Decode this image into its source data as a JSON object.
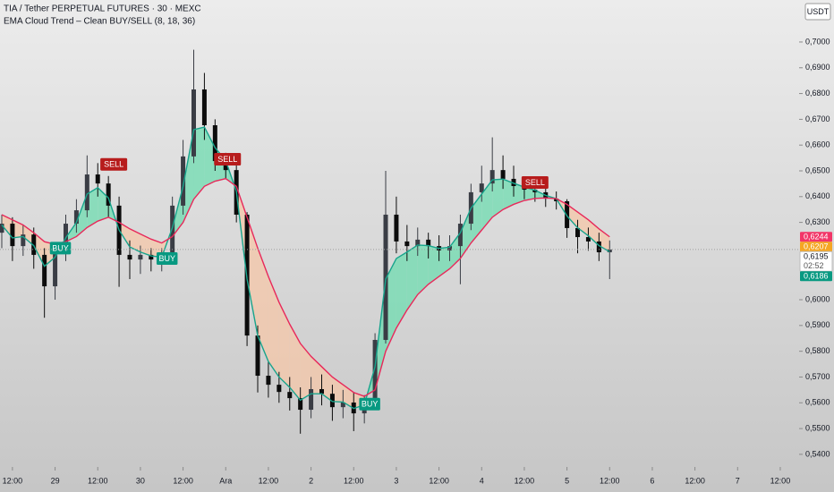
{
  "chart_data": {
    "type": "candlestick",
    "title": "TIA / Tether PERPETUAL FUTURES · 30 · MEXC",
    "subtitle": "EMA Cloud Trend – Clean BUY/SELL (8, 18, 36)",
    "currency": "USDT",
    "x": [
      -3,
      0,
      3,
      6,
      9,
      12,
      15,
      18,
      21,
      24,
      27,
      30,
      33,
      36,
      39,
      42,
      45,
      48,
      51,
      54,
      57,
      60,
      63,
      66,
      69,
      72,
      75,
      78,
      81,
      84,
      87,
      90,
      93,
      96,
      99,
      102,
      105,
      108,
      111,
      114,
      117,
      120,
      123,
      126,
      129,
      132,
      135,
      138,
      141,
      144,
      147,
      150,
      153,
      156,
      159,
      162,
      165,
      168
    ],
    "open": [
      0.626,
      0.6295,
      0.6208,
      0.6253,
      0.6174,
      0.6052,
      0.6191,
      0.6295,
      0.6347,
      0.6486,
      0.6451,
      0.6365,
      0.6174,
      0.6156,
      0.6174,
      0.6156,
      0.6163,
      0.6365,
      0.6556,
      0.6816,
      0.6677,
      0.6538,
      0.6503,
      0.633,
      0.5861,
      0.5705,
      0.567,
      0.5642,
      0.5618,
      0.5573,
      0.5653,
      0.5635,
      0.5583,
      0.5601,
      0.5559,
      0.5601,
      0.5844,
      0.633,
      0.6226,
      0.6208,
      0.6233,
      0.6208,
      0.6191,
      0.6208,
      0.6295,
      0.6417,
      0.6451,
      0.6503,
      0.6469,
      0.6441,
      0.6427,
      0.6417,
      0.6392,
      0.6382,
      0.6278,
      0.6243,
      0.6226,
      0.6184
    ],
    "high": [
      0.633,
      0.632,
      0.629,
      0.628,
      0.62,
      0.622,
      0.633,
      0.639,
      0.656,
      0.653,
      0.648,
      0.64,
      0.623,
      0.621,
      0.62,
      0.62,
      0.64,
      0.662,
      0.697,
      0.688,
      0.67,
      0.657,
      0.653,
      0.634,
      0.59,
      0.576,
      0.572,
      0.57,
      0.566,
      0.57,
      0.571,
      0.567,
      0.565,
      0.564,
      0.563,
      0.587,
      0.65,
      0.64,
      0.629,
      0.628,
      0.626,
      0.625,
      0.625,
      0.633,
      0.645,
      0.652,
      0.663,
      0.656,
      0.652,
      0.647,
      0.646,
      0.644,
      0.642,
      0.639,
      0.631,
      0.628,
      0.626,
      0.623
    ],
    "low": [
      0.62,
      0.615,
      0.617,
      0.612,
      0.593,
      0.6,
      0.615,
      0.626,
      0.632,
      0.64,
      0.632,
      0.605,
      0.608,
      0.61,
      0.611,
      0.611,
      0.615,
      0.633,
      0.653,
      0.662,
      0.65,
      0.647,
      0.63,
      0.582,
      0.564,
      0.562,
      0.56,
      0.557,
      0.548,
      0.554,
      0.559,
      0.553,
      0.554,
      0.549,
      0.552,
      0.558,
      0.583,
      0.618,
      0.615,
      0.617,
      0.616,
      0.615,
      0.615,
      0.606,
      0.627,
      0.638,
      0.642,
      0.643,
      0.64,
      0.639,
      0.638,
      0.636,
      0.635,
      0.624,
      0.618,
      0.619,
      0.615,
      0.608
    ],
    "close": [
      0.6295,
      0.6208,
      0.6253,
      0.6174,
      0.6052,
      0.6191,
      0.6295,
      0.6347,
      0.6486,
      0.6451,
      0.6365,
      0.6174,
      0.6156,
      0.6174,
      0.6156,
      0.6163,
      0.6365,
      0.6556,
      0.6816,
      0.6677,
      0.6538,
      0.6503,
      0.633,
      0.5861,
      0.5705,
      0.567,
      0.5642,
      0.5618,
      0.5573,
      0.5653,
      0.5635,
      0.5583,
      0.5601,
      0.5559,
      0.5601,
      0.5844,
      0.633,
      0.6226,
      0.6208,
      0.6233,
      0.6208,
      0.6191,
      0.6208,
      0.6295,
      0.6417,
      0.6451,
      0.6503,
      0.6469,
      0.6441,
      0.6427,
      0.6417,
      0.6392,
      0.6382,
      0.6278,
      0.6243,
      0.6226,
      0.6184,
      0.6195
    ],
    "up_color": "#3a3d45",
    "down_color": "#0c0c0c",
    "series": [
      {
        "color": "#17a48c",
        "values": [
          0.629,
          0.624,
          0.6245,
          0.621,
          0.613,
          0.6165,
          0.624,
          0.63,
          0.641,
          0.6435,
          0.6395,
          0.627,
          0.6205,
          0.6185,
          0.617,
          0.6165,
          0.628,
          0.644,
          0.666,
          0.667,
          0.659,
          0.654,
          0.642,
          0.608,
          0.586,
          0.576,
          0.57,
          0.566,
          0.561,
          0.5635,
          0.5635,
          0.5605,
          0.5603,
          0.5578,
          0.5592,
          0.574,
          0.608,
          0.616,
          0.6185,
          0.6212,
          0.621,
          0.6199,
          0.6204,
          0.626,
          0.6355,
          0.641,
          0.6465,
          0.6468,
          0.6452,
          0.6437,
          0.6425,
          0.6405,
          0.6392,
          0.6325,
          0.6279,
          0.6248,
          0.621,
          0.6186
        ]
      },
      {
        "color": "#e8285a",
        "values": [
          0.633,
          0.631,
          0.629,
          0.626,
          0.6225,
          0.6215,
          0.6225,
          0.6245,
          0.628,
          0.6305,
          0.632,
          0.63,
          0.6275,
          0.6255,
          0.6235,
          0.622,
          0.6245,
          0.63,
          0.639,
          0.644,
          0.646,
          0.647,
          0.644,
          0.632,
          0.62,
          0.609,
          0.599,
          0.5905,
          0.583,
          0.578,
          0.574,
          0.57,
          0.567,
          0.564,
          0.5625,
          0.565,
          0.58,
          0.589,
          0.596,
          0.602,
          0.606,
          0.609,
          0.612,
          0.616,
          0.622,
          0.627,
          0.632,
          0.635,
          0.637,
          0.6385,
          0.6393,
          0.6395,
          0.6392,
          0.637,
          0.634,
          0.631,
          0.6275,
          0.6244
        ]
      }
    ],
    "cloud_bull_color": "#6fdcb0",
    "cloud_bear_color": "#f5c7a8",
    "signals": [
      {
        "label": "BUY",
        "x": 13.5,
        "y": 0.62,
        "color": "#089981"
      },
      {
        "label": "SELL",
        "x": 28.5,
        "y": 0.6525,
        "color": "#b71c1c"
      },
      {
        "label": "BUY",
        "x": 43.5,
        "y": 0.616,
        "color": "#089981"
      },
      {
        "label": "SELL",
        "x": 60.5,
        "y": 0.6545,
        "color": "#b71c1c"
      },
      {
        "label": "BUY",
        "x": 100.5,
        "y": 0.5595,
        "color": "#089981"
      },
      {
        "label": "SELL",
        "x": 147,
        "y": 0.6455,
        "color": "#b71c1c"
      }
    ],
    "price_tags": [
      {
        "value": 0.6244,
        "label": "0,6244",
        "color": "#f23668"
      },
      {
        "value": 0.6207,
        "label": "0,6207",
        "color": "#f5a623"
      },
      {
        "value": 0.6195,
        "label": "0,6195",
        "time": "02:52",
        "color": "#ffffff"
      },
      {
        "value": 0.6186,
        "label": "0,6186",
        "color": "#089981"
      }
    ],
    "xlim": [
      -3.5,
      221.3
    ],
    "ylim": [
      0.5351,
      0.7163
    ],
    "xticks": [
      {
        "value": 0,
        "label": "12:00"
      },
      {
        "value": 12,
        "label": "29"
      },
      {
        "value": 24,
        "label": "12:00"
      },
      {
        "value": 36,
        "label": "30"
      },
      {
        "value": 48,
        "label": "12:00"
      },
      {
        "value": 60,
        "label": "Ara"
      },
      {
        "value": 72,
        "label": "12:00"
      },
      {
        "value": 84,
        "label": "2"
      },
      {
        "value": 96,
        "label": "12:00"
      },
      {
        "value": 108,
        "label": "3"
      },
      {
        "value": 120,
        "label": "12:00"
      },
      {
        "value": 132,
        "label": "4"
      },
      {
        "value": 144,
        "label": "12:00"
      },
      {
        "value": 156,
        "label": "5"
      },
      {
        "value": 168,
        "label": "12:00"
      },
      {
        "value": 180,
        "label": "6"
      },
      {
        "value": 192,
        "label": "12:00"
      },
      {
        "value": 204,
        "label": "7"
      },
      {
        "value": 216,
        "label": "12:00"
      }
    ],
    "yticks": [
      {
        "value": 0.7,
        "label": "0,7000"
      },
      {
        "value": 0.69,
        "label": "0,6900"
      },
      {
        "value": 0.68,
        "label": "0,6800"
      },
      {
        "value": 0.67,
        "label": "0,6700"
      },
      {
        "value": 0.66,
        "label": "0,6600"
      },
      {
        "value": 0.65,
        "label": "0,6500"
      },
      {
        "value": 0.64,
        "label": "0,6400"
      },
      {
        "value": 0.63,
        "label": "0,6300"
      },
      {
        "value": 0.6,
        "label": "0,6000"
      },
      {
        "value": 0.59,
        "label": "0,5900"
      },
      {
        "value": 0.58,
        "label": "0,5800"
      },
      {
        "value": 0.57,
        "label": "0,5700"
      },
      {
        "value": 0.56,
        "label": "0,5600"
      },
      {
        "value": 0.55,
        "label": "0,5500"
      },
      {
        "value": 0.54,
        "label": "0,5400"
      }
    ]
  }
}
